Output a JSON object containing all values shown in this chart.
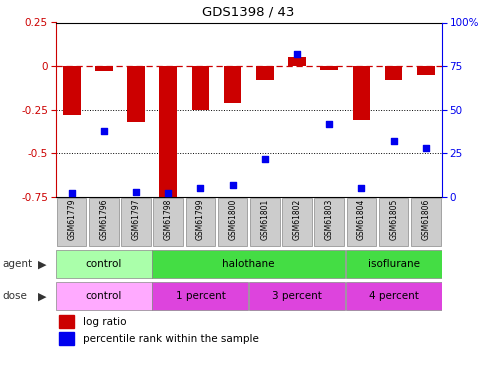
{
  "title": "GDS1398 / 43",
  "samples": [
    "GSM61779",
    "GSM61796",
    "GSM61797",
    "GSM61798",
    "GSM61799",
    "GSM61800",
    "GSM61801",
    "GSM61802",
    "GSM61803",
    "GSM61804",
    "GSM61805",
    "GSM61806"
  ],
  "log_ratio": [
    -0.28,
    -0.03,
    -0.32,
    -0.76,
    -0.25,
    -0.21,
    -0.08,
    0.05,
    -0.02,
    -0.31,
    -0.08,
    -0.05
  ],
  "percentile_rank": [
    2,
    38,
    3,
    2,
    5,
    7,
    22,
    82,
    42,
    5,
    32,
    28
  ],
  "ylim_left": [
    -0.75,
    0.25
  ],
  "ylim_right": [
    0,
    100
  ],
  "yticks_left": [
    0.25,
    0,
    -0.25,
    -0.5,
    -0.75
  ],
  "ytick_labels_left": [
    "0.25",
    "0",
    "-0.25",
    "-0.5",
    "-0.75"
  ],
  "yticks_right": [
    100,
    75,
    50,
    25,
    0
  ],
  "ytick_labels_right": [
    "100%",
    "75",
    "50",
    "25",
    "0"
  ],
  "bar_color": "#CC0000",
  "dot_color": "#0000EE",
  "agent_groups": [
    {
      "label": "control",
      "start": 0,
      "end": 3,
      "color": "#AAFFAA"
    },
    {
      "label": "halothane",
      "start": 3,
      "end": 9,
      "color": "#44DD44"
    },
    {
      "label": "isoflurane",
      "start": 9,
      "end": 12,
      "color": "#44DD44"
    }
  ],
  "dose_groups": [
    {
      "label": "control",
      "start": 0,
      "end": 3,
      "color": "#FFAAFF"
    },
    {
      "label": "1 percent",
      "start": 3,
      "end": 6,
      "color": "#DD44DD"
    },
    {
      "label": "3 percent",
      "start": 6,
      "end": 9,
      "color": "#DD44DD"
    },
    {
      "label": "4 percent",
      "start": 9,
      "end": 12,
      "color": "#DD44DD"
    }
  ],
  "legend_items": [
    {
      "label": "log ratio",
      "color": "#CC0000"
    },
    {
      "label": "percentile rank within the sample",
      "color": "#0000EE"
    }
  ],
  "left_axis_color": "#CC0000",
  "right_axis_color": "#0000EE",
  "bar_width": 0.55,
  "dot_size": 25,
  "sample_bg": "#CCCCCC"
}
